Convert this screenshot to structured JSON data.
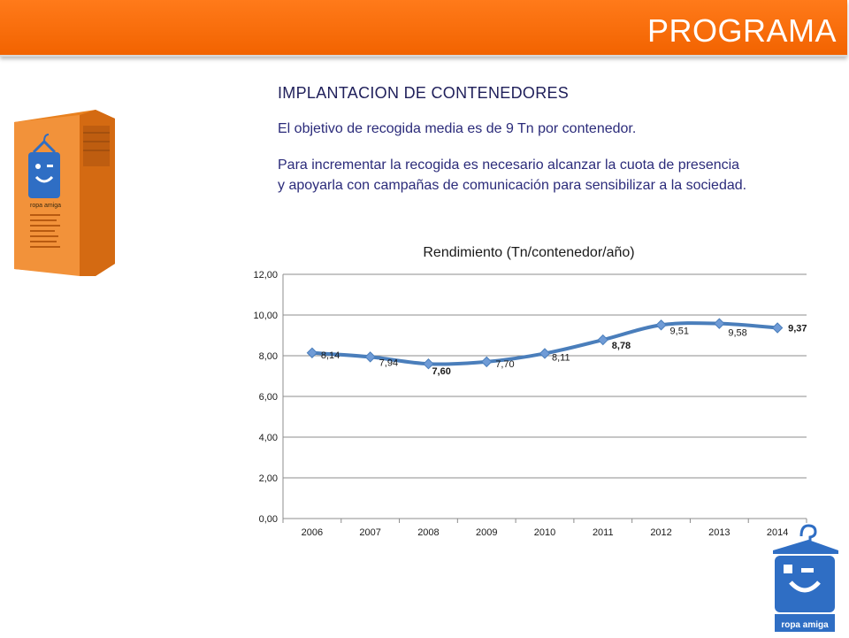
{
  "header": {
    "title": "PROGRAMA"
  },
  "content": {
    "heading": "IMPLANTACION DE CONTENEDORES",
    "paragraph1": "El objetivo de recogida media es de 9 Tn por contenedor.",
    "paragraph2_line1": "Para incrementar la recogida es necesario alcanzar la cuota de presencia",
    "paragraph2_line2": "y apoyarla con campañas de comunicación para sensibilizar a la sociedad."
  },
  "images": {
    "container_brand": "ropa amiga",
    "logo_text": "ropa amiga"
  },
  "colors": {
    "banner": "#f26300",
    "text": "#1f1f5a",
    "line": "#4a7ebb",
    "marker": "#6f9bd6"
  },
  "chart_data": {
    "type": "line",
    "title": "Rendimiento (Tn/contenedor/año)",
    "categories": [
      "2006",
      "2007",
      "2008",
      "2009",
      "2010",
      "2011",
      "2012",
      "2013",
      "2014"
    ],
    "values": [
      8.14,
      7.94,
      7.6,
      7.7,
      8.11,
      8.78,
      9.51,
      9.58,
      9.37
    ],
    "data_labels": [
      "8,14",
      "7,94",
      "7,60",
      "7,70",
      "8,11",
      "8,78",
      "9,51",
      "9,58",
      "9,37"
    ],
    "bold_labels": [
      false,
      false,
      true,
      false,
      false,
      true,
      false,
      false,
      true
    ],
    "yticks": [
      "0,00",
      "2,00",
      "4,00",
      "6,00",
      "8,00",
      "10,00",
      "12,00"
    ],
    "ylim": [
      0,
      12
    ],
    "grid": true,
    "legend": "none"
  }
}
